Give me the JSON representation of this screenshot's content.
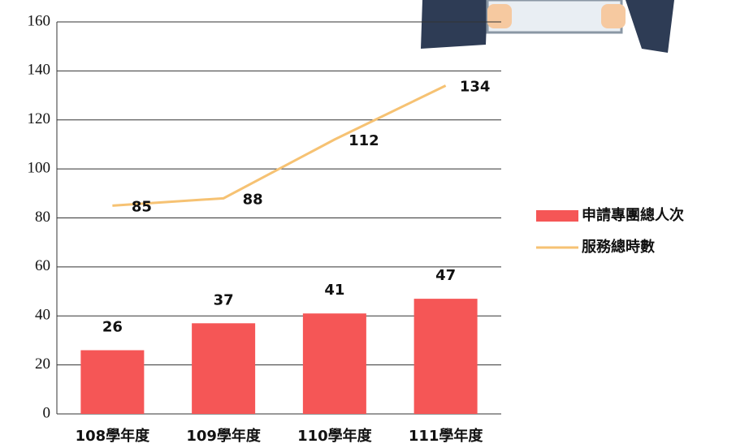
{
  "chart_data": {
    "type": "combo",
    "categories": [
      "108學年度",
      "109學年度",
      "110學年度",
      "111學年度"
    ],
    "series": [
      {
        "name": "申請專團總人次",
        "type": "bar",
        "color": "#f55656",
        "values": [
          26,
          37,
          41,
          47
        ]
      },
      {
        "name": "服務總時數",
        "type": "line",
        "color": "#f6c273",
        "values": [
          85,
          88,
          112,
          134
        ]
      }
    ],
    "ylim": [
      0,
      160
    ],
    "yticks": [
      0,
      20,
      40,
      60,
      80,
      100,
      120,
      140,
      160
    ],
    "grid": true,
    "legend": "right"
  }
}
